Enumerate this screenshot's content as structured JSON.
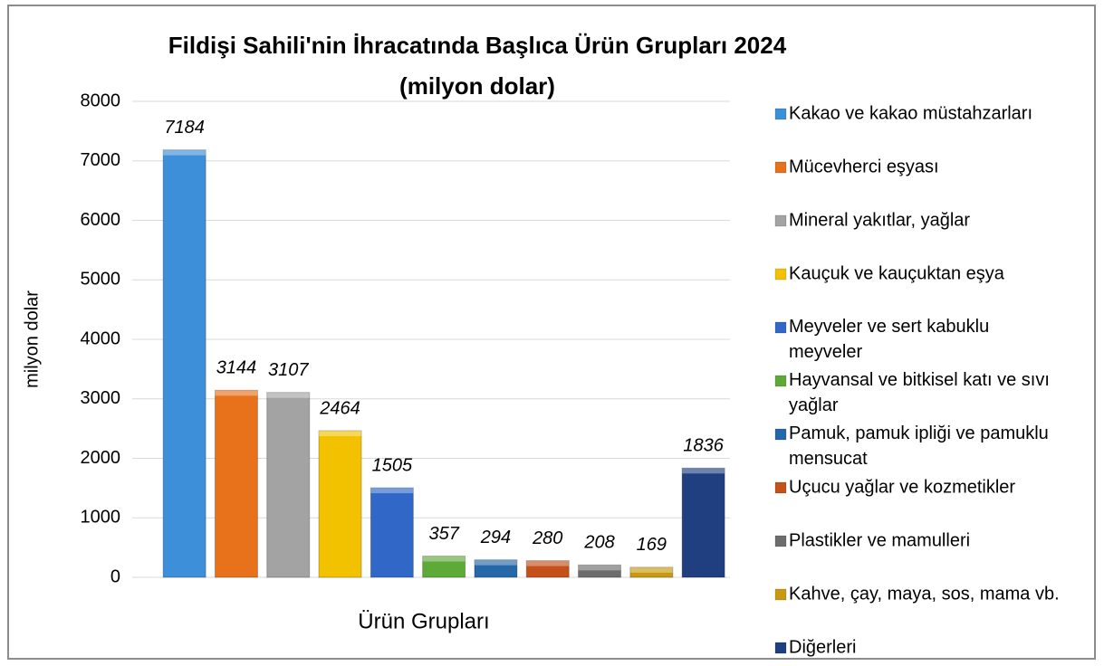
{
  "chart_data": {
    "type": "bar",
    "title": "Fildişi Sahili'nin İhracatında Başlıca Ürün Grupları 2024",
    "subtitle": "(milyon dolar)",
    "y_label": "milyon dolar",
    "x_label": "Ürün Grupları",
    "categories": [
      "Kakao ve kakao müstahzarları",
      "Mücevherci eşyası",
      "Mineral yakıtlar, yağlar",
      "Kauçuk ve kauçuktan eşya",
      "Meyveler ve sert kabuklu meyveler",
      "Hayvansal ve bitkisel katı ve sıvı yağlar",
      "Pamuk, pamuk ipliği ve pamuklu mensucat",
      "Uçucu yağlar ve kozmetikler",
      "Plastikler ve mamulleri",
      "Kahve, çay, maya, sos, mama vb.",
      "Diğerleri"
    ],
    "values": [
      7184,
      3144,
      3107,
      2464,
      1505,
      357,
      294,
      280,
      208,
      169,
      1836
    ],
    "colors": [
      "#3d8fd9",
      "#e8711c",
      "#a3a3a3",
      "#f2c200",
      "#3168c8",
      "#5eaa38",
      "#2468a8",
      "#c4501a",
      "#6d6d6d",
      "#c89a10",
      "#1f3f80"
    ],
    "ylim": [
      0,
      8000
    ],
    "yticks": [
      0,
      1000,
      2000,
      3000,
      4000,
      5000,
      6000,
      7000,
      8000
    ],
    "grid": true,
    "legend": "right"
  }
}
